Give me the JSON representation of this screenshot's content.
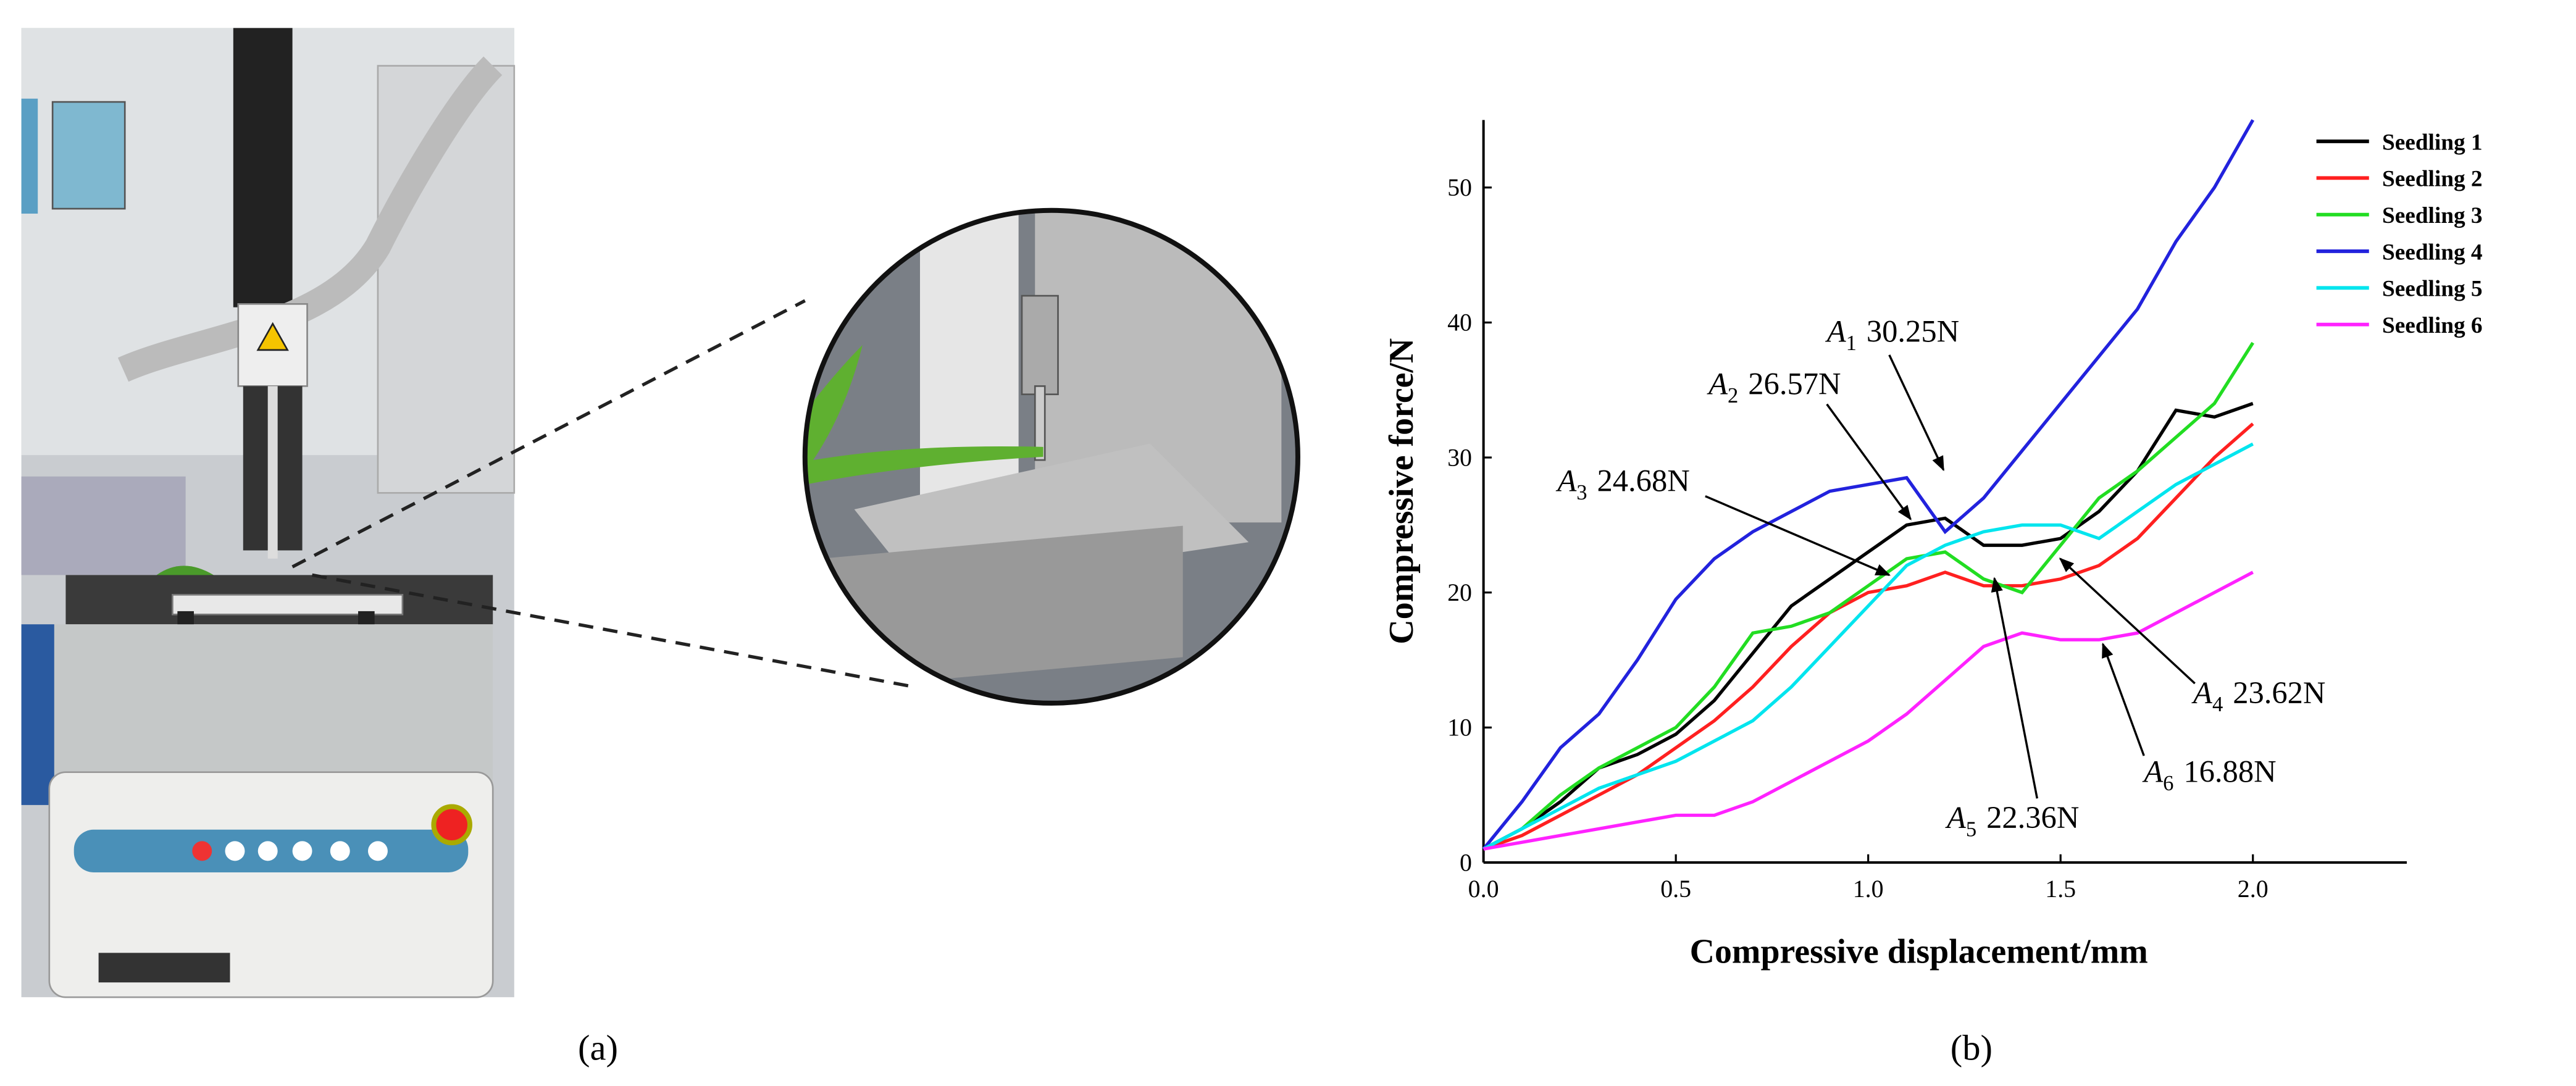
{
  "panels": {
    "a": {
      "label": "(a)"
    },
    "b": {
      "label": "(b)"
    }
  },
  "chart_data": {
    "type": "line",
    "xlabel": "Compressive displacement/mm",
    "ylabel": "Compressive force/N",
    "x": [
      0,
      0.1,
      0.2,
      0.3,
      0.4,
      0.5,
      0.6,
      0.7,
      0.8,
      0.9,
      1.0,
      1.1,
      1.2,
      1.3,
      1.4,
      1.5,
      1.6,
      1.7,
      1.8,
      1.9,
      2.0
    ],
    "series": [
      {
        "name": "Seedling 1",
        "color": "#000000",
        "values": [
          1,
          2.5,
          4.5,
          7,
          8,
          9.5,
          12,
          15.5,
          19,
          21,
          23,
          25,
          25.5,
          23.5,
          23.5,
          24,
          26,
          29,
          33.5,
          33,
          34
        ]
      },
      {
        "name": "Seedling 2",
        "color": "#ff2020",
        "values": [
          1,
          2,
          3.5,
          5,
          6.5,
          8.5,
          10.5,
          13,
          16,
          18.5,
          20,
          20.5,
          21.5,
          20.5,
          20.5,
          21,
          22,
          24,
          27,
          30,
          32.5
        ]
      },
      {
        "name": "Seedling 3",
        "color": "#22dd22",
        "values": [
          1,
          2.5,
          5,
          7,
          8.5,
          10,
          13,
          17,
          17.5,
          18.5,
          20.5,
          22.5,
          23,
          21,
          20,
          23.5,
          27,
          29,
          31.5,
          34,
          38.5
        ]
      },
      {
        "name": "Seedling 4",
        "color": "#2222dd",
        "values": [
          1,
          4.5,
          8.5,
          11,
          15,
          19.5,
          22.5,
          24.5,
          26,
          27.5,
          28,
          28.5,
          24.5,
          27,
          30.5,
          34,
          37.5,
          41,
          46,
          50,
          55
        ]
      },
      {
        "name": "Seedling 5",
        "color": "#00e5ee",
        "values": [
          1,
          2.5,
          4,
          5.5,
          6.5,
          7.5,
          9,
          10.5,
          13,
          16,
          19,
          22,
          23.5,
          24.5,
          25,
          25,
          24,
          26,
          28,
          29.5,
          31
        ]
      },
      {
        "name": "Seedling 6",
        "color": "#ff22ff",
        "values": [
          1,
          1.5,
          2,
          2.5,
          3,
          3.5,
          3.5,
          4.5,
          6,
          7.5,
          9,
          11,
          13.5,
          16,
          17,
          16.5,
          16.5,
          17,
          18.5,
          20,
          21.5
        ]
      }
    ],
    "xlim": [
      0,
      2.4
    ],
    "ylim": [
      0,
      55
    ],
    "xticks": [
      {
        "value": 0,
        "label": "0.0"
      },
      0.5,
      {
        "value": 1,
        "label": "1.0"
      },
      {
        "value": 1.5,
        "label": "1.5"
      },
      {
        "value": 2,
        "label": "2.0"
      }
    ],
    "yticks": [
      0,
      10,
      20,
      30,
      40,
      50
    ],
    "legend": "upper right",
    "annotations": [
      {
        "symbol": "A",
        "subscript": "1",
        "text": "30.25N"
      },
      {
        "symbol": "A",
        "subscript": "2",
        "text": "26.57N"
      },
      {
        "symbol": "A",
        "subscript": "3",
        "text": "24.68N"
      },
      {
        "symbol": "A",
        "subscript": "4",
        "text": "23.62N"
      },
      {
        "symbol": "A",
        "subscript": "5",
        "text": "22.36N"
      },
      {
        "symbol": "A",
        "subscript": "6",
        "text": "16.88N"
      }
    ]
  }
}
